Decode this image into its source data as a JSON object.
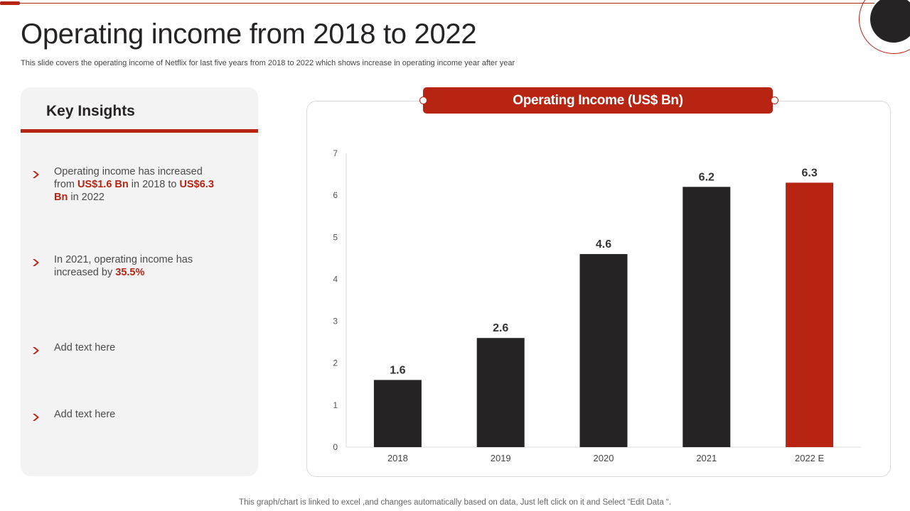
{
  "slide": {
    "title": "Operating income from 2018 to 2022",
    "subtitle": "This slide covers the operating income of Netflix for last five years from 2018 to 2022 which shows increase in operating income year after year",
    "footer": "This graph/chart is linked to excel ,and changes automatically based on data, Just left click on it and Select “Edit Data “."
  },
  "insights": {
    "heading": "Key Insights",
    "item1": {
      "a": "Operating income has increased from ",
      "b": "US$1.6 Bn",
      "c": " in 2018 to ",
      "d": "US$6.3 Bn",
      "e": " in 2022"
    },
    "item2": {
      "a": "In 2021, operating income has increased by ",
      "b": "35.5%"
    },
    "item3": "Add text here",
    "item4": "Add text here"
  },
  "colors": {
    "accent": "#b72411",
    "dark": "#262324"
  },
  "chart_data": {
    "type": "bar",
    "title": "Operating Income (US$ Bn)",
    "categories": [
      "2018",
      "2019",
      "2020",
      "2021",
      "2022 E"
    ],
    "values": [
      1.6,
      2.6,
      4.6,
      6.2,
      6.3
    ],
    "data_labels": [
      "1.6",
      "2.6",
      "4.6",
      "6.2",
      "6.3"
    ],
    "bar_colors": [
      "#262324",
      "#262324",
      "#262324",
      "#262324",
      "#b72411"
    ],
    "ylim": [
      0,
      7
    ],
    "yticks": [
      0,
      1,
      2,
      3,
      4,
      5,
      6,
      7
    ],
    "xlabel": "",
    "ylabel": "",
    "grid": false
  }
}
